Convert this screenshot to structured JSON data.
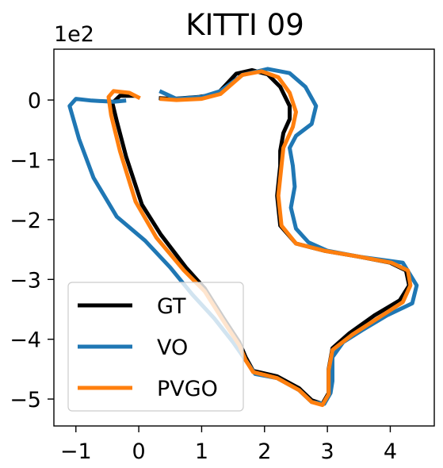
{
  "chart_data": {
    "type": "line",
    "title": "KITTI 09",
    "xlabel": "",
    "ylabel": "",
    "offset_text": "1e2",
    "xlim": [
      -1.35,
      4.7
    ],
    "ylim": [
      -5.45,
      0.85
    ],
    "xticks": [
      -1,
      0,
      1,
      2,
      3,
      4
    ],
    "xtick_labels": [
      "−1",
      "0",
      "1",
      "2",
      "3",
      "4"
    ],
    "yticks": [
      0,
      -1,
      -2,
      -3,
      -4,
      -5
    ],
    "ytick_labels": [
      "0",
      "−1",
      "−2",
      "−3",
      "−4",
      "−5"
    ],
    "grid": false,
    "legend": {
      "position": "lower-left"
    },
    "series": [
      {
        "name": "GT",
        "color": "#000000",
        "points": [
          [
            -0.05,
            0.07
          ],
          [
            -0.3,
            0.07
          ],
          [
            -0.42,
            -0.05
          ],
          [
            -0.35,
            -0.35
          ],
          [
            -0.2,
            -0.95
          ],
          [
            0.05,
            -1.75
          ],
          [
            0.35,
            -2.25
          ],
          [
            0.75,
            -2.8
          ],
          [
            1.05,
            -3.15
          ],
          [
            1.35,
            -3.65
          ],
          [
            1.6,
            -4.05
          ],
          [
            1.7,
            -4.3
          ],
          [
            1.82,
            -4.53
          ],
          [
            2.2,
            -4.62
          ],
          [
            2.55,
            -4.82
          ],
          [
            2.75,
            -5.02
          ],
          [
            2.92,
            -5.08
          ],
          [
            3.02,
            -4.9
          ],
          [
            3.02,
            -4.5
          ],
          [
            3.08,
            -4.15
          ],
          [
            3.35,
            -3.9
          ],
          [
            3.75,
            -3.6
          ],
          [
            4.15,
            -3.35
          ],
          [
            4.3,
            -3.1
          ],
          [
            4.25,
            -2.85
          ],
          [
            4.0,
            -2.72
          ],
          [
            3.5,
            -2.62
          ],
          [
            2.95,
            -2.52
          ],
          [
            2.5,
            -2.4
          ],
          [
            2.25,
            -2.1
          ],
          [
            2.2,
            -1.6
          ],
          [
            2.25,
            -1.1
          ],
          [
            2.25,
            -0.85
          ],
          [
            2.3,
            -0.55
          ],
          [
            2.4,
            -0.32
          ],
          [
            2.4,
            -0.1
          ],
          [
            2.25,
            0.22
          ],
          [
            2.05,
            0.43
          ],
          [
            1.8,
            0.5
          ],
          [
            1.55,
            0.44
          ],
          [
            1.25,
            0.1
          ],
          [
            0.95,
            0.05
          ],
          [
            0.55,
            0.02
          ],
          [
            0.32,
            0.03
          ]
        ]
      },
      {
        "name": "VO",
        "color": "#1f77b4",
        "points": [
          [
            0.33,
            0.15
          ],
          [
            0.6,
            0.02
          ],
          [
            1.0,
            0.05
          ],
          [
            1.3,
            0.15
          ],
          [
            1.65,
            0.42
          ],
          [
            2.05,
            0.52
          ],
          [
            2.4,
            0.45
          ],
          [
            2.65,
            0.22
          ],
          [
            2.82,
            -0.1
          ],
          [
            2.75,
            -0.4
          ],
          [
            2.5,
            -0.6
          ],
          [
            2.4,
            -0.8
          ],
          [
            2.45,
            -1.1
          ],
          [
            2.48,
            -1.45
          ],
          [
            2.42,
            -1.8
          ],
          [
            2.5,
            -2.15
          ],
          [
            2.7,
            -2.38
          ],
          [
            3.0,
            -2.52
          ],
          [
            3.5,
            -2.62
          ],
          [
            4.2,
            -2.72
          ],
          [
            4.42,
            -3.1
          ],
          [
            4.35,
            -3.4
          ],
          [
            3.95,
            -3.6
          ],
          [
            3.55,
            -3.85
          ],
          [
            3.25,
            -4.05
          ],
          [
            3.08,
            -4.3
          ],
          [
            3.08,
            -4.7
          ],
          [
            3.05,
            -4.9
          ],
          [
            2.95,
            -5.08
          ],
          [
            2.75,
            -5.05
          ],
          [
            2.55,
            -4.85
          ],
          [
            2.2,
            -4.65
          ],
          [
            1.85,
            -4.58
          ],
          [
            1.72,
            -4.38
          ],
          [
            1.5,
            -4.05
          ],
          [
            1.2,
            -3.65
          ],
          [
            0.85,
            -3.25
          ],
          [
            0.5,
            -2.8
          ],
          [
            0.1,
            -2.35
          ],
          [
            -0.35,
            -1.95
          ],
          [
            -0.72,
            -1.3
          ],
          [
            -0.95,
            -0.65
          ],
          [
            -1.1,
            -0.1
          ],
          [
            -1.0,
            0.02
          ],
          [
            -0.75,
            -0.01
          ],
          [
            -0.4,
            -0.03
          ],
          [
            -0.2,
            -0.01
          ]
        ]
      },
      {
        "name": "PVGO",
        "color": "#ff7f0e",
        "points": [
          [
            0.02,
            0.03
          ],
          [
            -0.15,
            0.12
          ],
          [
            -0.4,
            0.15
          ],
          [
            -0.48,
            0.05
          ],
          [
            -0.44,
            -0.25
          ],
          [
            -0.3,
            -0.85
          ],
          [
            -0.05,
            -1.7
          ],
          [
            0.28,
            -2.3
          ],
          [
            0.72,
            -2.85
          ],
          [
            1.05,
            -3.2
          ],
          [
            1.35,
            -3.7
          ],
          [
            1.6,
            -4.1
          ],
          [
            1.7,
            -4.35
          ],
          [
            1.82,
            -4.55
          ],
          [
            2.2,
            -4.65
          ],
          [
            2.55,
            -4.85
          ],
          [
            2.75,
            -5.05
          ],
          [
            2.92,
            -5.1
          ],
          [
            3.02,
            -4.92
          ],
          [
            3.02,
            -4.52
          ],
          [
            3.08,
            -4.18
          ],
          [
            3.4,
            -3.92
          ],
          [
            3.8,
            -3.65
          ],
          [
            4.2,
            -3.38
          ],
          [
            4.32,
            -3.1
          ],
          [
            4.28,
            -2.85
          ],
          [
            4.02,
            -2.72
          ],
          [
            3.5,
            -2.62
          ],
          [
            2.95,
            -2.52
          ],
          [
            2.5,
            -2.4
          ],
          [
            2.27,
            -2.1
          ],
          [
            2.22,
            -1.6
          ],
          [
            2.27,
            -1.1
          ],
          [
            2.3,
            -0.8
          ],
          [
            2.45,
            -0.45
          ],
          [
            2.5,
            -0.2
          ],
          [
            2.4,
            0.12
          ],
          [
            2.22,
            0.38
          ],
          [
            1.95,
            0.48
          ],
          [
            1.65,
            0.42
          ],
          [
            1.3,
            0.1
          ],
          [
            1.0,
            0.02
          ],
          [
            0.6,
            0.0
          ],
          [
            0.33,
            0.02
          ]
        ]
      }
    ]
  }
}
